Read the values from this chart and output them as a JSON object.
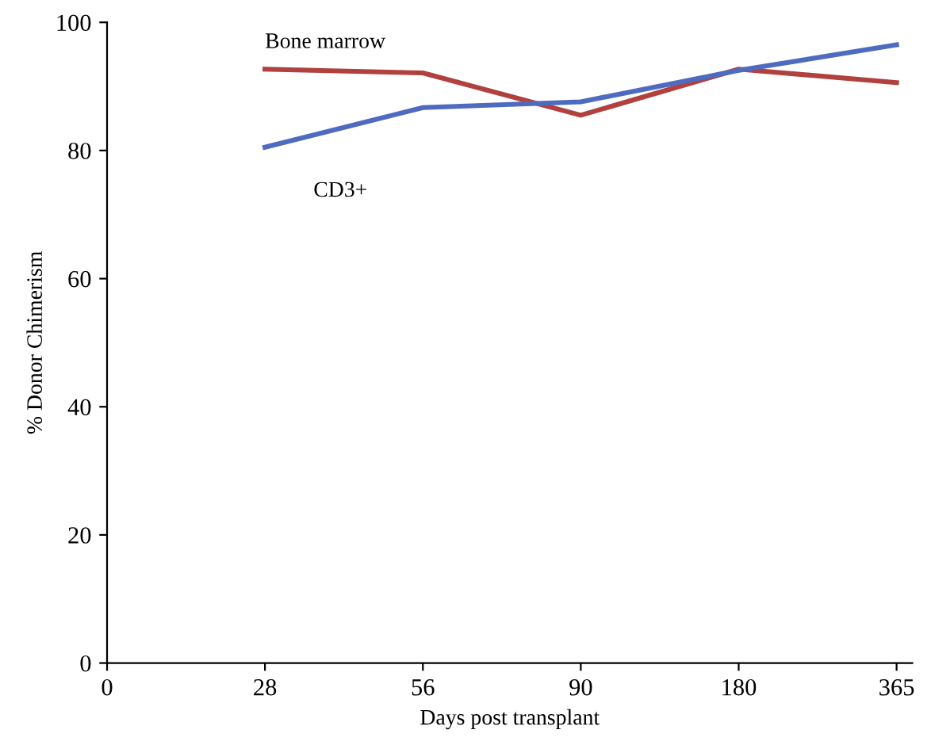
{
  "chart_data": {
    "type": "line",
    "xlabel": "Days post transplant",
    "ylabel": "% Donor Chimerism",
    "categories": [
      "0",
      "28",
      "56",
      "90",
      "180",
      "365"
    ],
    "series": [
      {
        "name": "Bone marrow",
        "color": "#b0413e",
        "values": [
          null,
          92.7,
          92.1,
          85.5,
          92.7,
          90.6
        ]
      },
      {
        "name": "CD3+",
        "color": "#4f6bbf",
        "values": [
          null,
          80.5,
          86.7,
          87.6,
          92.5,
          96.5
        ]
      }
    ],
    "ylim": [
      0,
      100
    ],
    "yticks": [
      0,
      20,
      40,
      60,
      80,
      100
    ],
    "grid": false,
    "legend": false,
    "marker": "none",
    "line_style": "solid"
  }
}
